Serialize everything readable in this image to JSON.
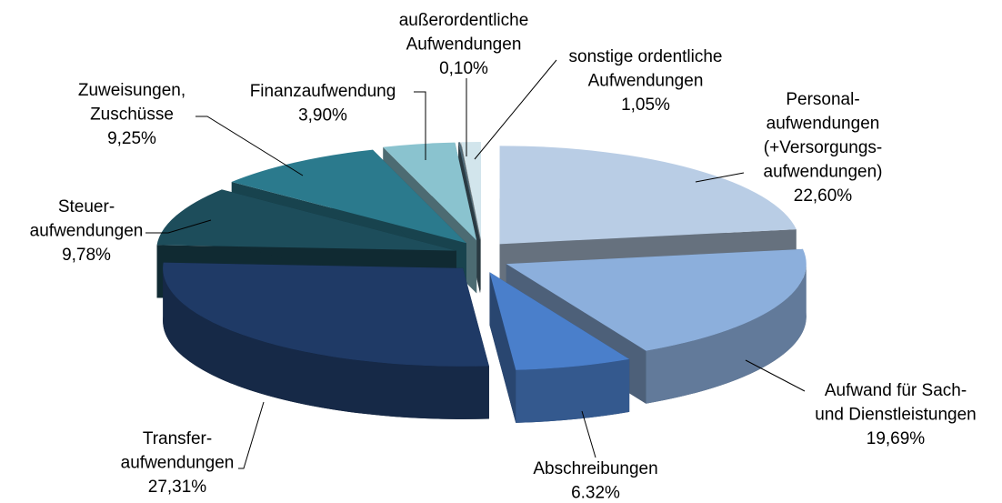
{
  "chart_data": {
    "type": "pie3d",
    "categories": [
      [
        "Personal-",
        "aufwendungen",
        "(+Versorgungs-",
        "aufwendungen)"
      ],
      [
        "Aufwand für Sach-",
        "und Dienstleistungen"
      ],
      [
        "Abschreibungen"
      ],
      [
        "Transfer-",
        "aufwendungen"
      ],
      [
        "Steuer-",
        "aufwendungen"
      ],
      [
        "Zuweisungen,",
        "Zuschüsse"
      ],
      [
        "Finanzaufwendung"
      ],
      [
        "außerordentliche",
        "Aufwendungen"
      ],
      [
        "sonstige ordentliche",
        "Aufwendungen"
      ]
    ],
    "values": [
      22.6,
      19.69,
      6.32,
      27.31,
      9.78,
      9.25,
      3.9,
      0.1,
      1.05
    ],
    "value_labels": [
      "22,60%",
      "19,69%",
      "6.32%",
      "27,31%",
      "9,78%",
      "9,25%",
      "3,90%",
      "0,10%",
      "1,05%"
    ],
    "colors": [
      "#b9cde5",
      "#8cafdc",
      "#4a7fcb",
      "#1f3a66",
      "#1d4d5b",
      "#2b7a8d",
      "#8ac3cf",
      "#4d6978",
      "#d2e5ec"
    ]
  }
}
